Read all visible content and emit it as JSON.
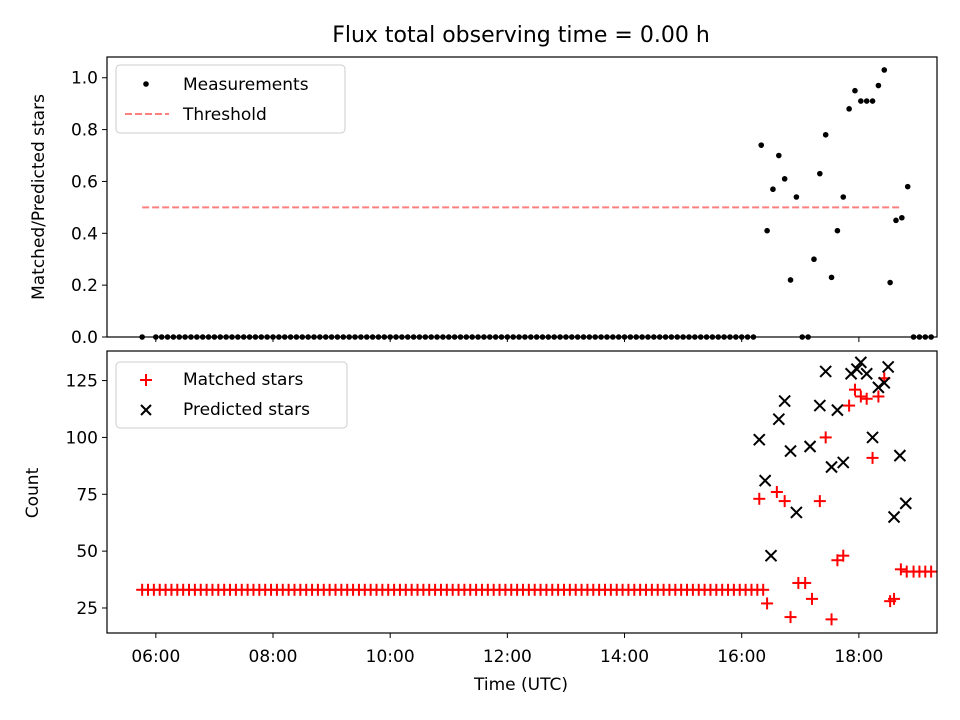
{
  "chart_data": [
    {
      "type": "scatter",
      "title": "Flux total observing time = 0.00 h",
      "xlabel": "",
      "ylabel": "Matched/Predicted stars",
      "xlim": [
        "05:10",
        "19:20"
      ],
      "ylim": [
        0,
        1.08
      ],
      "yticks": [
        0.0,
        0.2,
        0.4,
        0.6,
        0.8,
        1.0
      ],
      "ytick_labels": [
        "0.0",
        "0.2",
        "0.4",
        "0.6",
        "0.8",
        "1.0"
      ],
      "legend_position": "top-left",
      "series": [
        {
          "name": "Measurements",
          "marker": "dot",
          "color": "#000000",
          "x_step_minutes": 6,
          "x_start": "05:46",
          "points": [
            [
              "05:46",
              0.0
            ],
            [
              "06:00",
              0.0
            ],
            [
              "16:20",
              0.74
            ],
            [
              "16:26",
              0.41
            ],
            [
              "16:32",
              0.57
            ],
            [
              "16:38",
              0.7
            ],
            [
              "16:44",
              0.61
            ],
            [
              "16:50",
              0.22
            ],
            [
              "16:56",
              0.54
            ],
            [
              "17:02",
              0.0
            ],
            [
              "17:08",
              0.0
            ],
            [
              "17:14",
              0.3
            ],
            [
              "17:20",
              0.63
            ],
            [
              "17:26",
              0.78
            ],
            [
              "17:32",
              0.23
            ],
            [
              "17:38",
              0.41
            ],
            [
              "17:44",
              0.54
            ],
            [
              "17:50",
              0.88
            ],
            [
              "17:56",
              0.95
            ],
            [
              "18:02",
              0.91
            ],
            [
              "18:08",
              0.91
            ],
            [
              "18:14",
              0.91
            ],
            [
              "18:20",
              0.97
            ],
            [
              "18:26",
              1.03
            ],
            [
              "18:32",
              0.21
            ],
            [
              "18:38",
              0.45
            ],
            [
              "18:44",
              0.46
            ],
            [
              "18:50",
              0.58
            ],
            [
              "18:56",
              0.0
            ],
            [
              "19:02",
              0.0
            ],
            [
              "19:08",
              0.0
            ],
            [
              "19:14",
              0.0
            ]
          ],
          "zero_run": [
            "06:06",
            "16:14"
          ]
        },
        {
          "name": "Threshold",
          "line_style": "dashed",
          "color": "#ff7f7f",
          "x": [
            "05:46",
            "18:44"
          ],
          "y": [
            0.5,
            0.5
          ]
        }
      ]
    },
    {
      "type": "scatter",
      "title": "",
      "xlabel": "Time (UTC)",
      "ylabel": "Count",
      "xlim": [
        "05:10",
        "19:20"
      ],
      "ylim": [
        14,
        138
      ],
      "yticks": [
        25,
        50,
        75,
        100,
        125
      ],
      "ytick_labels": [
        "25",
        "50",
        "75",
        "100",
        "125"
      ],
      "xticks": [
        "06:00",
        "08:00",
        "10:00",
        "12:00",
        "14:00",
        "16:00",
        "18:00"
      ],
      "xtick_labels": [
        "06:00",
        "08:00",
        "10:00",
        "12:00",
        "14:00",
        "16:00",
        "18:00"
      ],
      "legend_position": "top-left",
      "series": [
        {
          "name": "Matched stars",
          "marker": "plus",
          "color": "#ff0000",
          "baseline_value": 33,
          "baseline_run": [
            "05:46",
            "16:26"
          ],
          "points": [
            [
              "16:18",
              73
            ],
            [
              "16:26",
              27
            ],
            [
              "16:36",
              76
            ],
            [
              "16:44",
              72
            ],
            [
              "16:50",
              21
            ],
            [
              "16:58",
              36
            ],
            [
              "17:05",
              36
            ],
            [
              "17:12",
              29
            ],
            [
              "17:20",
              72
            ],
            [
              "17:26",
              100
            ],
            [
              "17:32",
              20
            ],
            [
              "17:38",
              46
            ],
            [
              "17:44",
              48
            ],
            [
              "17:50",
              114
            ],
            [
              "17:56",
              121
            ],
            [
              "18:02",
              118
            ],
            [
              "18:08",
              117
            ],
            [
              "18:14",
              91
            ],
            [
              "18:20",
              118
            ],
            [
              "18:26",
              126
            ],
            [
              "18:32",
              28
            ],
            [
              "18:36",
              29
            ],
            [
              "18:43",
              42
            ],
            [
              "18:49",
              41
            ],
            [
              "18:56",
              41
            ],
            [
              "19:02",
              41
            ],
            [
              "19:08",
              41
            ],
            [
              "19:14",
              41
            ]
          ]
        },
        {
          "name": "Predicted stars",
          "marker": "x",
          "color": "#000000",
          "points": [
            [
              "16:18",
              99
            ],
            [
              "16:24",
              81
            ],
            [
              "16:30",
              48
            ],
            [
              "16:38",
              108
            ],
            [
              "16:44",
              116
            ],
            [
              "16:50",
              94
            ],
            [
              "16:56",
              67
            ],
            [
              "17:10",
              96
            ],
            [
              "17:20",
              114
            ],
            [
              "17:26",
              129
            ],
            [
              "17:32",
              87
            ],
            [
              "17:38",
              112
            ],
            [
              "17:44",
              89
            ],
            [
              "17:52",
              128
            ],
            [
              "17:58",
              130
            ],
            [
              "18:02",
              133
            ],
            [
              "18:08",
              128
            ],
            [
              "18:14",
              100
            ],
            [
              "18:20",
              122
            ],
            [
              "18:26",
              124
            ],
            [
              "18:30",
              131
            ],
            [
              "18:36",
              65
            ],
            [
              "18:42",
              92
            ],
            [
              "18:48",
              71
            ]
          ]
        }
      ]
    }
  ]
}
